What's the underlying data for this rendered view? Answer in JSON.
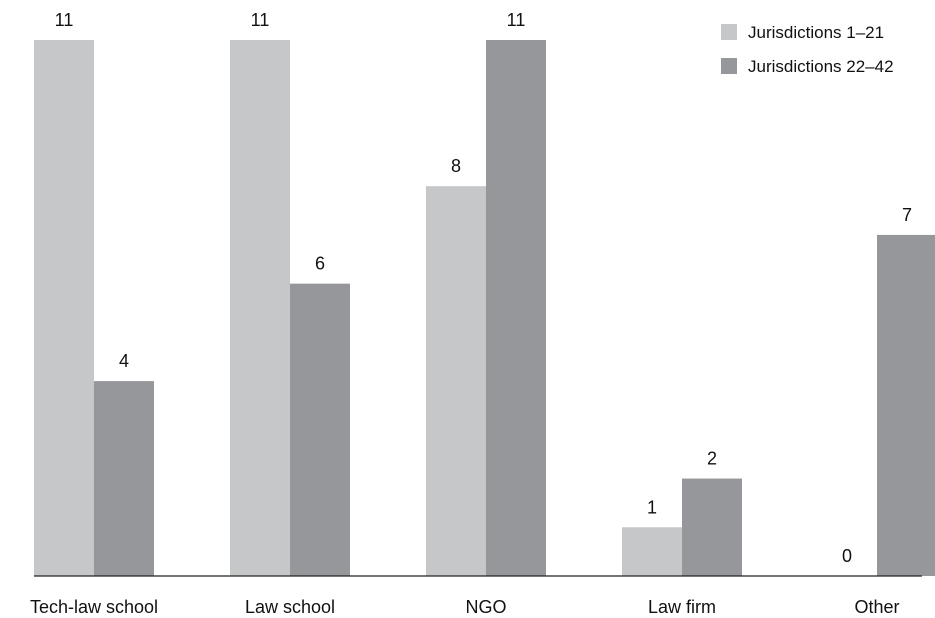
{
  "chart_data": {
    "type": "bar",
    "categories": [
      "Tech-law school",
      "Law school",
      "NGO",
      "Law firm",
      "Other"
    ],
    "series": [
      {
        "name": "Jurisdictions 1–21",
        "values": [
          11,
          11,
          8,
          1,
          0
        ],
        "color": "#c6c7c9"
      },
      {
        "name": "Jurisdictions 22–42",
        "values": [
          4,
          6,
          11,
          2,
          7
        ],
        "color": "#96979a"
      }
    ],
    "title": "",
    "xlabel": "",
    "ylabel": "",
    "ylim": [
      0,
      11
    ],
    "grid": false,
    "legend_position": "top-right",
    "data_labels": true
  }
}
